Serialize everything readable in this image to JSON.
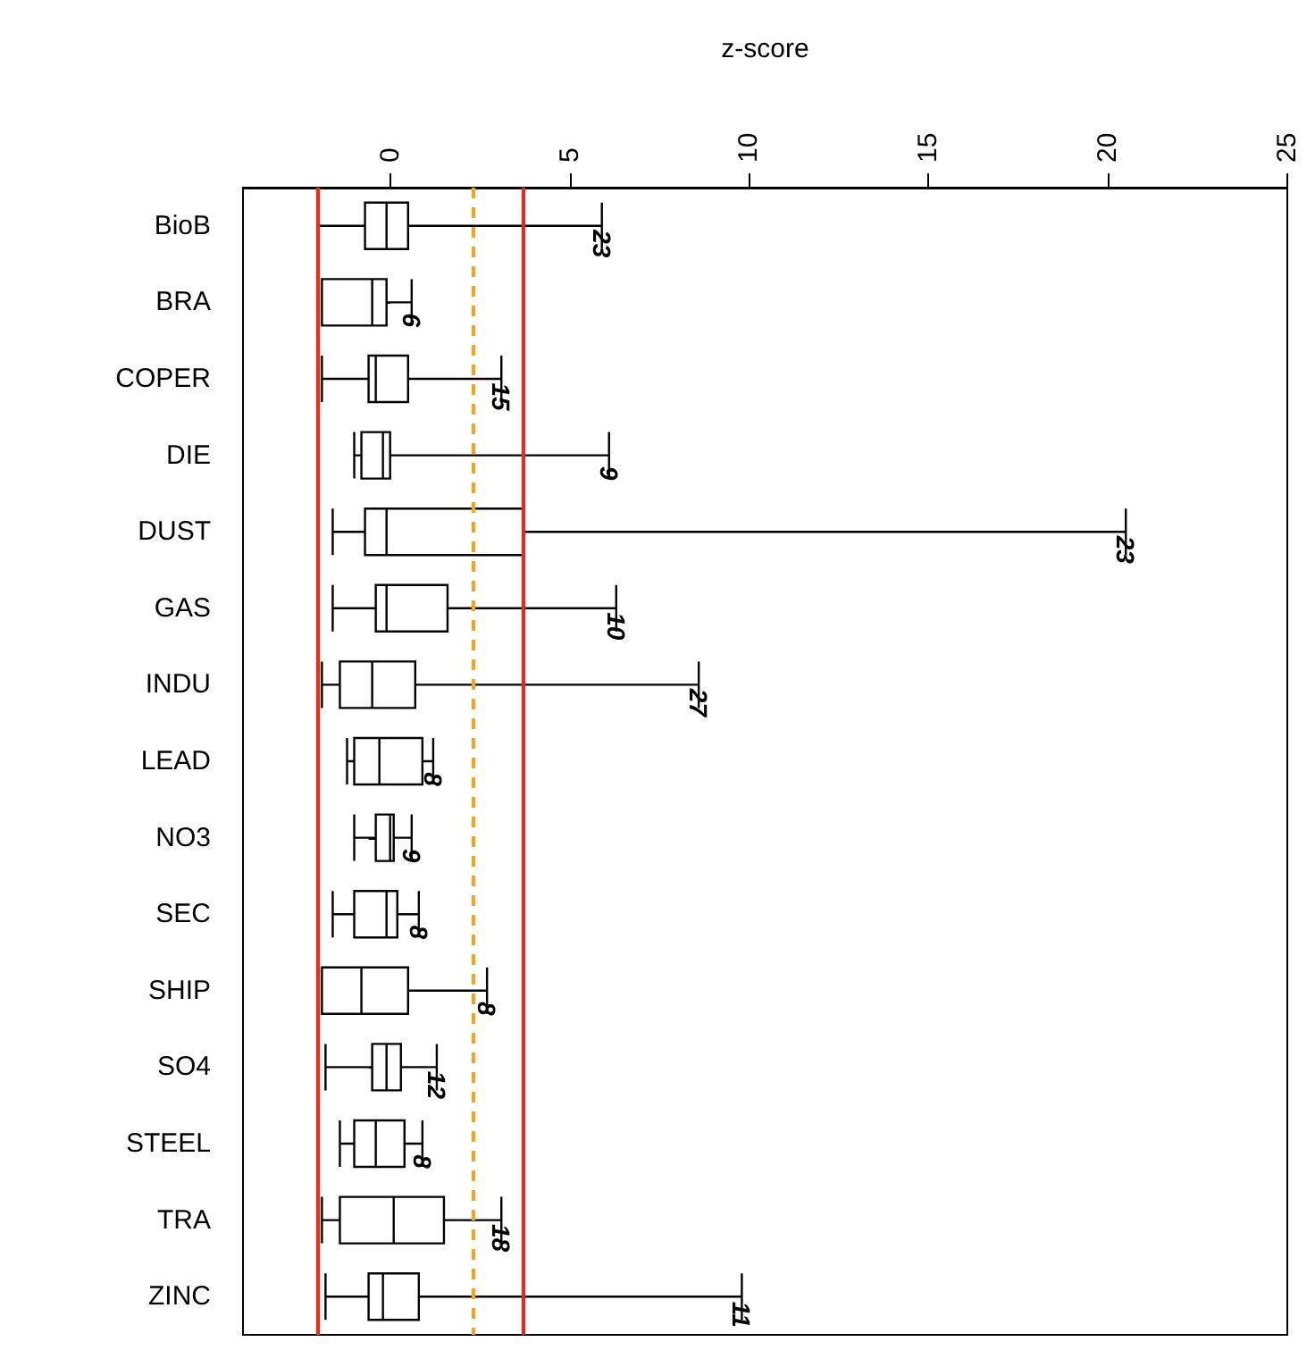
{
  "chart_data": {
    "type": "box",
    "orientation": "horizontal",
    "xlabel": "z-score",
    "categories": [
      "BioB",
      "BRA",
      "COPER",
      "DIE",
      "DUST",
      "GAS",
      "INDU",
      "LEAD",
      "NO3",
      "SEC",
      "SHIP",
      "SO4",
      "STEEL",
      "TRA",
      "ZINC"
    ],
    "boxes": [
      {
        "low": -2.0,
        "q1": -0.7,
        "median": -0.1,
        "q3": 0.5,
        "high": 5.9
      },
      {
        "low": -1.9,
        "q1": -1.9,
        "median": -0.5,
        "q3": -0.1,
        "high": 0.6
      },
      {
        "low": -1.9,
        "q1": -0.6,
        "median": -0.4,
        "q3": 0.5,
        "high": 3.1
      },
      {
        "low": -1.0,
        "q1": -0.8,
        "median": -0.2,
        "q3": 0.0,
        "high": 6.1
      },
      {
        "low": -1.6,
        "q1": -0.7,
        "median": -0.1,
        "q3": 3.7,
        "high": 20.5
      },
      {
        "low": -1.6,
        "q1": -0.4,
        "median": -0.1,
        "q3": 1.6,
        "high": 6.3
      },
      {
        "low": -1.9,
        "q1": -1.4,
        "median": -0.5,
        "q3": 0.7,
        "high": 8.6
      },
      {
        "low": -1.2,
        "q1": -1.0,
        "median": -0.3,
        "q3": 0.9,
        "high": 1.2
      },
      {
        "low": -1.0,
        "q1": -0.4,
        "median": 0.0,
        "q3": 0.1,
        "high": 0.6
      },
      {
        "low": -1.6,
        "q1": -1.0,
        "median": -0.1,
        "q3": 0.2,
        "high": 0.8
      },
      {
        "low": -1.9,
        "q1": -1.9,
        "median": -0.8,
        "q3": 0.5,
        "high": 2.7
      },
      {
        "low": -1.8,
        "q1": -0.5,
        "median": -0.1,
        "q3": 0.3,
        "high": 1.3
      },
      {
        "low": -1.4,
        "q1": -1.0,
        "median": -0.4,
        "q3": 0.4,
        "high": 0.9
      },
      {
        "low": -1.9,
        "q1": -1.4,
        "median": 0.1,
        "q3": 1.5,
        "high": 3.1
      },
      {
        "low": -1.8,
        "q1": -0.6,
        "median": -0.2,
        "q3": 0.8,
        "high": 9.8
      }
    ],
    "xlim": [
      -4.1,
      25
    ],
    "xticks": [
      0,
      5,
      10,
      15,
      20,
      25
    ],
    "grid": false,
    "ref_lines": [
      {
        "axis": "x",
        "value": -2,
        "color": "#e0311c",
        "line_style": "solid"
      },
      {
        "axis": "x",
        "value": 2.3,
        "color": "#e8a82a",
        "line_style": "dashed"
      },
      {
        "axis": "x",
        "value": 3.7,
        "color": "#d4302a",
        "line_style": "solid"
      }
    ],
    "annotations": [
      {
        "text": "23",
        "x": 5.9,
        "y": "BioB"
      },
      {
        "text": "6",
        "x": 0.6,
        "y": "BRA"
      },
      {
        "text": "15",
        "x": 3.1,
        "y": "COPER"
      },
      {
        "text": "9",
        "x": 6.1,
        "y": "DIE"
      },
      {
        "text": "23",
        "x": 20.5,
        "y": "DUST"
      },
      {
        "text": "10",
        "x": 6.3,
        "y": "GAS"
      },
      {
        "text": "27",
        "x": 8.6,
        "y": "INDU"
      },
      {
        "text": "8",
        "x": 1.2,
        "y": "LEAD"
      },
      {
        "text": "9",
        "x": 0.6,
        "y": "NO3"
      },
      {
        "text": "8",
        "x": 0.8,
        "y": "SEC"
      },
      {
        "text": "8",
        "x": 2.7,
        "y": "SHIP"
      },
      {
        "text": "12",
        "x": 1.3,
        "y": "SO4"
      },
      {
        "text": "8",
        "x": 0.9,
        "y": "STEEL"
      },
      {
        "text": "18",
        "x": 3.1,
        "y": "TRA"
      },
      {
        "text": "11",
        "x": 9.8,
        "y": "ZINC"
      }
    ]
  }
}
